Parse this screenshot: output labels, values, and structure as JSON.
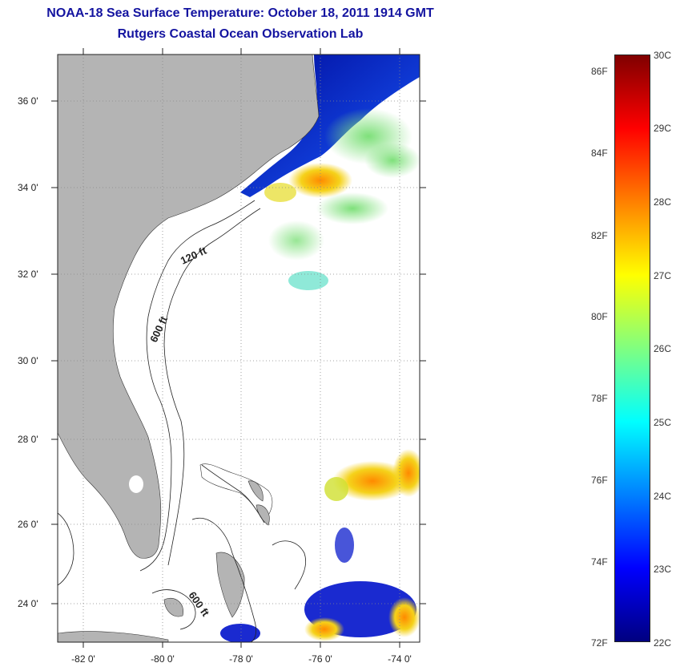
{
  "title": {
    "line1": "NOAA-18 Sea Surface Temperature:  October 18, 2011 1914 GMT",
    "line2": "Rutgers Coastal Ocean Observation Lab"
  },
  "map": {
    "lat_labels": [
      "36 0'",
      "34 0'",
      "32 0'",
      "30 0'",
      "28 0'",
      "26 0'",
      "24 0'"
    ],
    "lon_labels": [
      "-82 0'",
      "-80 0'",
      "-78 0'",
      "-76 0'",
      "-74 0'"
    ],
    "contour_labels": {
      "shelf_120": "120 ft",
      "shelf_600_north": "600 ft",
      "shelf_600_south": "600 ft"
    },
    "colors": {
      "land": "#b4b4b4",
      "ocean_background": "#ffffff",
      "cold_water": "#0018c8",
      "grid": "#666666"
    }
  },
  "colorbar": {
    "fahrenheit_labels": [
      "86F",
      "84F",
      "82F",
      "80F",
      "78F",
      "76F",
      "74F",
      "72F"
    ],
    "celsius_labels": [
      "30C",
      "29C",
      "28C",
      "27C",
      "26C",
      "25C",
      "24C",
      "23C",
      "22C"
    ],
    "gradient_stops": [
      "#800000",
      "#ff0000",
      "#ff8000",
      "#ffff00",
      "#80ff80",
      "#00ffff",
      "#0080ff",
      "#0000ff",
      "#000080"
    ]
  }
}
